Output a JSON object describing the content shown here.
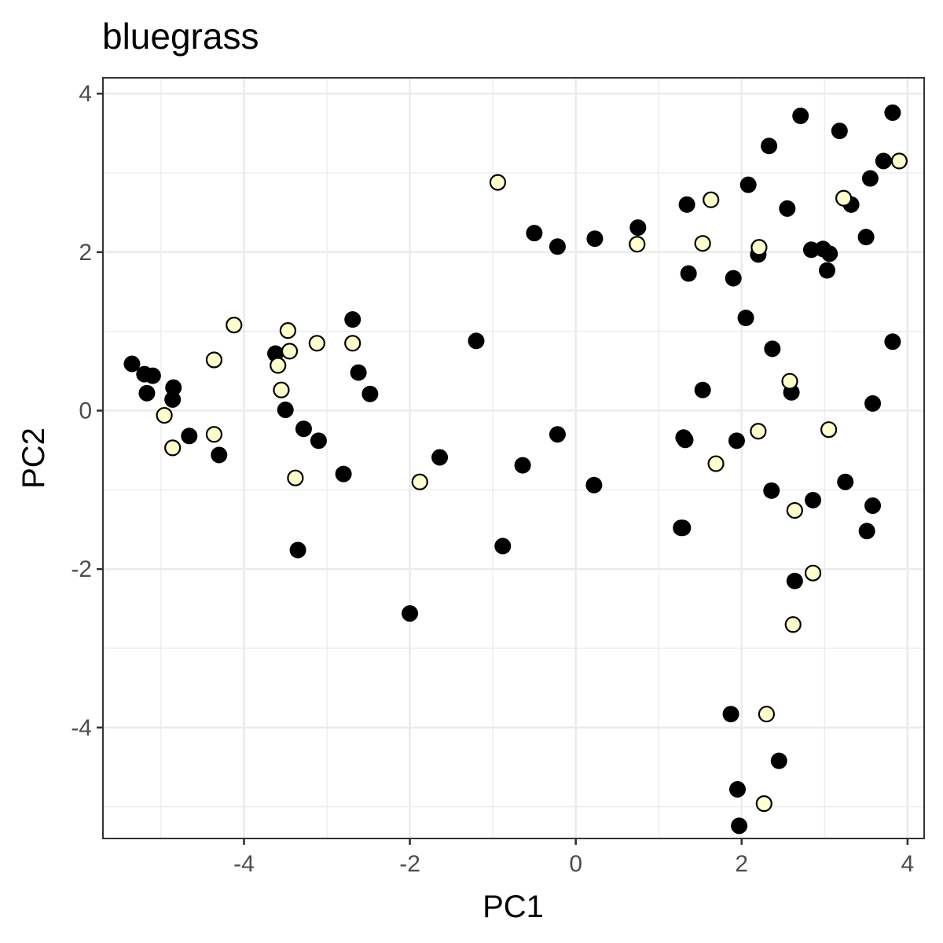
{
  "chart_data": {
    "type": "scatter",
    "title": "bluegrass",
    "xlabel": "PC1",
    "ylabel": "PC2",
    "xlim": [
      -5.7,
      4.2
    ],
    "ylim": [
      -5.4,
      4.2
    ],
    "x_ticks": [
      -4,
      -2,
      0,
      2,
      4
    ],
    "y_ticks": [
      -4,
      -2,
      0,
      2,
      4
    ],
    "x_tick_labels": [
      "-4",
      "-2",
      "0",
      "2",
      "4"
    ],
    "y_tick_labels": [
      "-4",
      "-2",
      "0",
      "2",
      "4"
    ],
    "grid": true,
    "legend": "none",
    "colors": {
      "dark_fill": "#000000",
      "light_fill": "#ffffcc",
      "marker_stroke": "#000000",
      "panel_border": "#333333",
      "grid": "#ebebeb"
    },
    "series": [
      {
        "fill": "#000000",
        "points": [
          [
            -5.35,
            0.59
          ],
          [
            -5.2,
            0.46
          ],
          [
            -5.1,
            0.44
          ],
          [
            -5.17,
            0.22
          ],
          [
            -4.85,
            0.29
          ],
          [
            -4.86,
            0.14
          ],
          [
            -4.66,
            -0.32
          ],
          [
            -4.3,
            -0.56
          ],
          [
            -3.62,
            0.72
          ],
          [
            -3.5,
            0.01
          ],
          [
            -3.28,
            -0.23
          ],
          [
            -3.1,
            -0.38
          ],
          [
            -3.35,
            -1.76
          ],
          [
            -2.8,
            -0.8
          ],
          [
            -2.69,
            1.15
          ],
          [
            -2.62,
            0.48
          ],
          [
            -2.48,
            0.21
          ],
          [
            -2.0,
            -2.56
          ],
          [
            -1.64,
            -0.59
          ],
          [
            -1.2,
            0.88
          ],
          [
            -0.88,
            -1.71
          ],
          [
            -0.64,
            -0.69
          ],
          [
            -0.5,
            2.24
          ],
          [
            -0.22,
            2.07
          ],
          [
            -0.22,
            -0.3
          ],
          [
            0.23,
            2.17
          ],
          [
            0.22,
            -0.94
          ],
          [
            0.75,
            2.31
          ],
          [
            1.27,
            -1.48
          ],
          [
            1.29,
            -1.48
          ],
          [
            1.3,
            -0.34
          ],
          [
            1.32,
            -0.37
          ],
          [
            1.34,
            2.6
          ],
          [
            1.36,
            1.73
          ],
          [
            1.53,
            0.26
          ],
          [
            1.87,
            -3.83
          ],
          [
            1.9,
            1.67
          ],
          [
            1.94,
            -0.38
          ],
          [
            1.95,
            -4.78
          ],
          [
            1.97,
            -5.24
          ],
          [
            2.05,
            1.17
          ],
          [
            2.08,
            2.85
          ],
          [
            2.2,
            1.97
          ],
          [
            2.33,
            3.34
          ],
          [
            2.36,
            -1.01
          ],
          [
            2.37,
            0.78
          ],
          [
            2.45,
            -4.42
          ],
          [
            2.55,
            2.55
          ],
          [
            2.6,
            0.23
          ],
          [
            2.64,
            -2.15
          ],
          [
            2.71,
            3.72
          ],
          [
            2.84,
            2.03
          ],
          [
            2.86,
            -1.13
          ],
          [
            2.98,
            2.04
          ],
          [
            3.03,
            1.77
          ],
          [
            3.06,
            1.98
          ],
          [
            3.18,
            3.53
          ],
          [
            3.25,
            -0.9
          ],
          [
            3.32,
            2.6
          ],
          [
            3.5,
            2.19
          ],
          [
            3.51,
            -1.52
          ],
          [
            3.55,
            2.93
          ],
          [
            3.58,
            0.09
          ],
          [
            3.58,
            -1.2
          ],
          [
            3.71,
            3.15
          ],
          [
            3.82,
            3.76
          ],
          [
            3.82,
            0.87
          ]
        ]
      },
      {
        "fill": "#ffffcc",
        "points": [
          [
            -4.96,
            -0.06
          ],
          [
            -4.86,
            -0.47
          ],
          [
            -4.36,
            0.64
          ],
          [
            -4.36,
            -0.3
          ],
          [
            -4.12,
            1.08
          ],
          [
            -3.59,
            0.57
          ],
          [
            -3.55,
            0.26
          ],
          [
            -3.47,
            1.01
          ],
          [
            -3.45,
            0.75
          ],
          [
            -3.38,
            -0.85
          ],
          [
            -3.12,
            0.85
          ],
          [
            -2.69,
            0.85
          ],
          [
            -1.88,
            -0.9
          ],
          [
            -0.94,
            2.88
          ],
          [
            0.74,
            2.1
          ],
          [
            1.53,
            2.11
          ],
          [
            1.63,
            2.66
          ],
          [
            1.69,
            -0.67
          ],
          [
            2.2,
            -0.26
          ],
          [
            2.21,
            2.06
          ],
          [
            2.27,
            -4.96
          ],
          [
            2.3,
            -3.83
          ],
          [
            2.58,
            0.37
          ],
          [
            2.62,
            -2.7
          ],
          [
            2.64,
            -1.26
          ],
          [
            2.86,
            -2.05
          ],
          [
            3.05,
            -0.24
          ],
          [
            3.23,
            2.68
          ],
          [
            3.9,
            3.15
          ]
        ]
      }
    ]
  }
}
